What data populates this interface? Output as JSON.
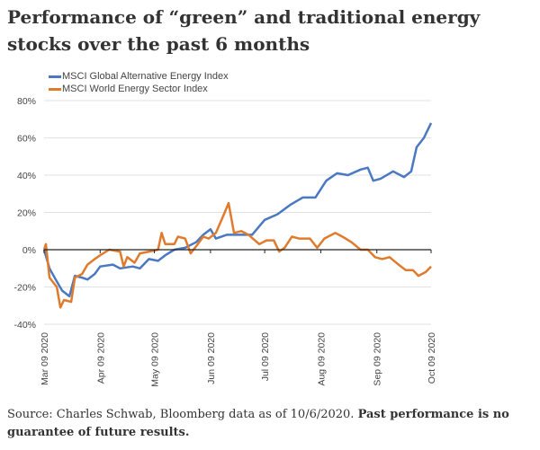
{
  "chart_data": {
    "type": "line",
    "title": "Performance of “green” and traditional energy stocks over the past 6 months",
    "ylim": [
      -40,
      80
    ],
    "yticks": [
      "80%",
      "60%",
      "40%",
      "20%",
      "0%",
      "-20%",
      "-40%"
    ],
    "ytick_values": [
      80,
      60,
      40,
      20,
      0,
      -20,
      -40
    ],
    "xticks": [
      "Mar 09 2020",
      "Apr 09 2020",
      "May 09 2020",
      "Jun 09 2020",
      "Jul 09 2020",
      "Aug 09 2020",
      "Sep 09 2020",
      "Oct 09 2020"
    ],
    "xtick_dates": [
      "2020-03-09",
      "2020-04-09",
      "2020-05-09",
      "2020-06-09",
      "2020-07-09",
      "2020-08-09",
      "2020-09-09",
      "2020-10-09"
    ],
    "grid": true,
    "legend": "top-left",
    "series": [
      {
        "name": "MSCI Global Alternative Energy Index",
        "color": "#4a78c2",
        "points": [
          [
            "2020-03-09",
            0
          ],
          [
            "2020-03-12",
            -10
          ],
          [
            "2020-03-16",
            -17
          ],
          [
            "2020-03-19",
            -22
          ],
          [
            "2020-03-23",
            -25
          ],
          [
            "2020-03-26",
            -14
          ],
          [
            "2020-03-30",
            -15
          ],
          [
            "2020-04-02",
            -16
          ],
          [
            "2020-04-06",
            -13
          ],
          [
            "2020-04-09",
            -9
          ],
          [
            "2020-04-16",
            -8
          ],
          [
            "2020-04-20",
            -10
          ],
          [
            "2020-04-27",
            -9
          ],
          [
            "2020-05-01",
            -10
          ],
          [
            "2020-05-06",
            -5
          ],
          [
            "2020-05-11",
            -6
          ],
          [
            "2020-05-15",
            -3
          ],
          [
            "2020-05-20",
            0
          ],
          [
            "2020-05-26",
            1
          ],
          [
            "2020-06-01",
            4
          ],
          [
            "2020-06-05",
            8
          ],
          [
            "2020-06-09",
            11
          ],
          [
            "2020-06-12",
            6
          ],
          [
            "2020-06-18",
            8
          ],
          [
            "2020-06-25",
            8
          ],
          [
            "2020-07-02",
            8
          ],
          [
            "2020-07-09",
            16
          ],
          [
            "2020-07-16",
            19
          ],
          [
            "2020-07-23",
            24
          ],
          [
            "2020-07-30",
            28
          ],
          [
            "2020-08-06",
            28
          ],
          [
            "2020-08-12",
            37
          ],
          [
            "2020-08-18",
            41
          ],
          [
            "2020-08-24",
            40
          ],
          [
            "2020-08-31",
            43
          ],
          [
            "2020-09-04",
            44
          ],
          [
            "2020-09-07",
            37
          ],
          [
            "2020-09-11",
            38
          ],
          [
            "2020-09-18",
            42
          ],
          [
            "2020-09-24",
            39
          ],
          [
            "2020-09-28",
            42
          ],
          [
            "2020-10-01",
            55
          ],
          [
            "2020-10-05",
            60
          ],
          [
            "2020-10-09",
            68
          ]
        ]
      },
      {
        "name": "MSCI World Energy Sector Index",
        "color": "#e07b2e",
        "points": [
          [
            "2020-03-09",
            0
          ],
          [
            "2020-03-10",
            3
          ],
          [
            "2020-03-12",
            -15
          ],
          [
            "2020-03-16",
            -20
          ],
          [
            "2020-03-18",
            -31
          ],
          [
            "2020-03-20",
            -27
          ],
          [
            "2020-03-24",
            -28
          ],
          [
            "2020-03-26",
            -15
          ],
          [
            "2020-03-30",
            -13
          ],
          [
            "2020-04-02",
            -8
          ],
          [
            "2020-04-06",
            -5
          ],
          [
            "2020-04-09",
            -3
          ],
          [
            "2020-04-14",
            0
          ],
          [
            "2020-04-20",
            -1
          ],
          [
            "2020-04-22",
            -9
          ],
          [
            "2020-04-24",
            -4
          ],
          [
            "2020-04-28",
            -7
          ],
          [
            "2020-05-01",
            -2
          ],
          [
            "2020-05-06",
            -1
          ],
          [
            "2020-05-11",
            0
          ],
          [
            "2020-05-13",
            9
          ],
          [
            "2020-05-15",
            3
          ],
          [
            "2020-05-20",
            3
          ],
          [
            "2020-05-22",
            7
          ],
          [
            "2020-05-26",
            6
          ],
          [
            "2020-05-29",
            -2
          ],
          [
            "2020-06-02",
            3
          ],
          [
            "2020-06-05",
            7
          ],
          [
            "2020-06-08",
            6
          ],
          [
            "2020-06-12",
            9
          ],
          [
            "2020-06-16",
            18
          ],
          [
            "2020-06-19",
            25
          ],
          [
            "2020-06-22",
            9
          ],
          [
            "2020-06-26",
            10
          ],
          [
            "2020-06-30",
            8
          ],
          [
            "2020-07-06",
            3
          ],
          [
            "2020-07-10",
            5
          ],
          [
            "2020-07-14",
            5
          ],
          [
            "2020-07-17",
            -1
          ],
          [
            "2020-07-20",
            1
          ],
          [
            "2020-07-24",
            7
          ],
          [
            "2020-07-28",
            6
          ],
          [
            "2020-08-03",
            6
          ],
          [
            "2020-08-07",
            1
          ],
          [
            "2020-08-11",
            6
          ],
          [
            "2020-08-17",
            9
          ],
          [
            "2020-08-21",
            7
          ],
          [
            "2020-08-26",
            4
          ],
          [
            "2020-08-31",
            0
          ],
          [
            "2020-09-04",
            0
          ],
          [
            "2020-09-08",
            -4
          ],
          [
            "2020-09-12",
            -5
          ],
          [
            "2020-09-16",
            -4
          ],
          [
            "2020-09-21",
            -8
          ],
          [
            "2020-09-25",
            -11
          ],
          [
            "2020-09-29",
            -11
          ],
          [
            "2020-10-02",
            -14
          ],
          [
            "2020-10-06",
            -12
          ],
          [
            "2020-10-09",
            -9
          ]
        ]
      }
    ]
  },
  "footer": {
    "source": "Source: Charles Schwab, Bloomberg data as of 10/6/2020. ",
    "disclaimer": "Past performance is no guarantee of future results."
  }
}
